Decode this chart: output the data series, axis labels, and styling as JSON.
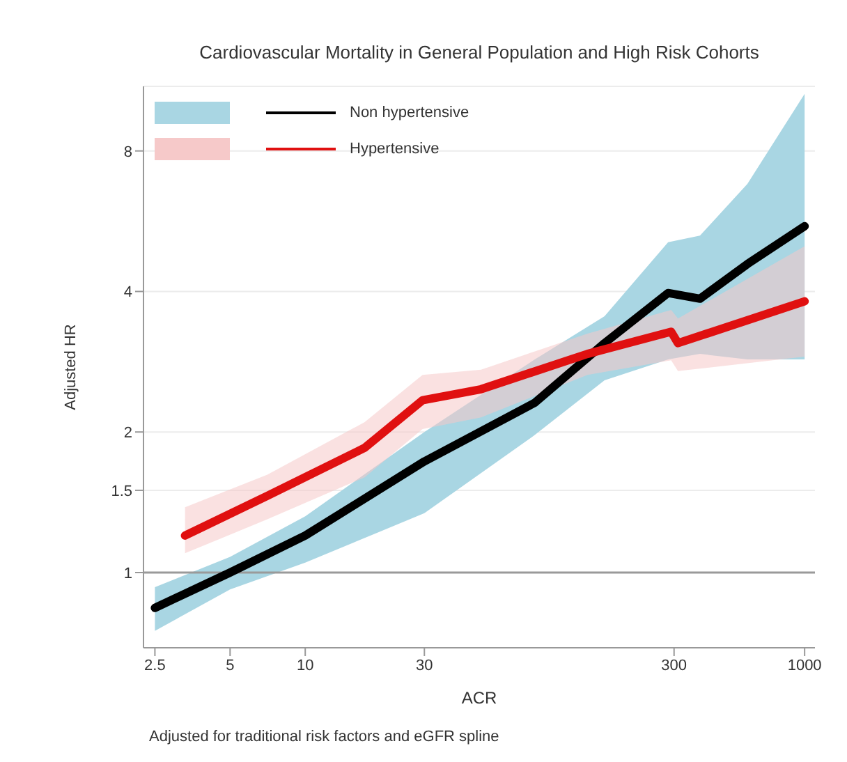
{
  "chart_data": {
    "type": "line",
    "title": "Cardiovascular Mortality in General Population and High Risk Cohorts",
    "xlabel": "ACR",
    "ylabel": "Adjusted HR",
    "annotations": [
      "Adjusted for traditional risk factors and eGFR spline"
    ],
    "log": "xy",
    "xlim": [
      2.25,
      1100
    ],
    "xticks": [
      2.5,
      5,
      10,
      30,
      300,
      1000
    ],
    "ylim": [
      0.69,
      11
    ],
    "yticks": [
      1,
      1.5,
      2,
      4,
      8
    ],
    "grid": "y",
    "legend": "top left",
    "marker": "none",
    "line_style": "solid",
    "ref_lines": [
      {
        "axis": "y",
        "value": 1,
        "color": "#9a9a9a"
      }
    ],
    "series": [
      {
        "name": "Non hypertensive",
        "color": "#000000",
        "x": [
          2.5,
          5,
          10,
          30,
          83,
          158,
          284,
          381,
          590,
          1000
        ],
        "values": [
          0.84,
          1.0,
          1.2,
          1.73,
          2.31,
          3.1,
          3.97,
          3.86,
          4.58,
          5.52
        ],
        "lower": [
          0.75,
          0.92,
          1.05,
          1.34,
          1.97,
          2.58,
          2.86,
          2.94,
          2.86,
          2.86
        ],
        "upper": [
          0.93,
          1.08,
          1.32,
          2.0,
          2.86,
          3.54,
          5.1,
          5.27,
          6.8,
          10.6
        ]
      },
      {
        "name": "Hypertensive",
        "color": "#e01010",
        "x": [
          3.3,
          7.05,
          17.3,
          29.5,
          50.6,
          135,
          292,
          311,
          1000
        ],
        "values": [
          1.2,
          1.46,
          1.85,
          2.34,
          2.47,
          2.94,
          3.28,
          3.1,
          3.81
        ],
        "lower": [
          1.1,
          1.3,
          1.6,
          2.03,
          2.15,
          2.65,
          2.85,
          2.7,
          2.9
        ],
        "upper": [
          1.38,
          1.62,
          2.1,
          2.65,
          2.72,
          3.25,
          3.65,
          3.5,
          5.0
        ]
      }
    ]
  }
}
